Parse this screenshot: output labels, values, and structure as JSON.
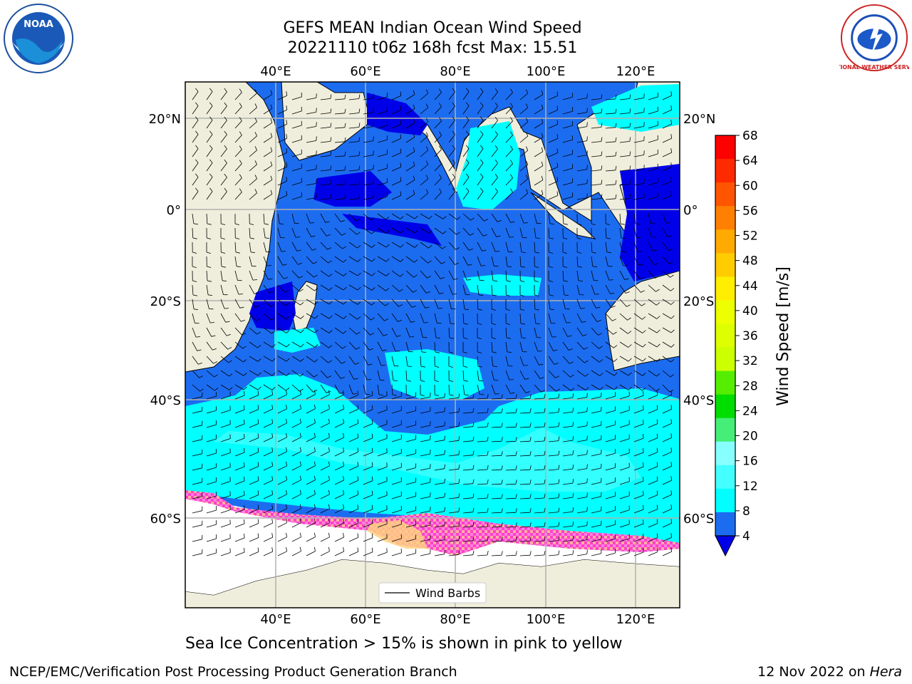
{
  "title": {
    "line1": "GEFS MEAN Indian Ocean Wind Speed",
    "line2": "20221110 t06z 168h fcst   Max: 15.51"
  },
  "map": {
    "lon_labels_top": [
      "40°E",
      "60°E",
      "80°E",
      "100°E",
      "120°E"
    ],
    "lon_labels_bottom": [
      "40°E",
      "60°E",
      "80°E",
      "100°E",
      "120°E"
    ],
    "lat_labels_left": [
      "20°N",
      "0°",
      "20°S",
      "40°S",
      "60°S"
    ],
    "lat_labels_right": [
      "20°N",
      "0°",
      "20°S",
      "40°S",
      "60°S"
    ],
    "legend_label": "Wind Barbs",
    "colors": {
      "land": "#efeedc",
      "ice_free_white": "#ffffff",
      "ws_4_8": "#1c6cf0",
      "ws_0_4": "#0000e8",
      "ws_8_12": "#00ffff",
      "ws_12_16": "#40ffff",
      "ice_pink": "#ff40c8",
      "ice_yellow": "#ffd080"
    }
  },
  "colorbar": {
    "label": "Wind Speed [m/s]",
    "ticks": [
      "68",
      "64",
      "60",
      "56",
      "52",
      "48",
      "44",
      "40",
      "36",
      "32",
      "28",
      "24",
      "20",
      "16",
      "12",
      "8",
      "4"
    ],
    "band_colors": [
      "#ff0000",
      "#ff2a00",
      "#ff5500",
      "#ff8000",
      "#ffaa00",
      "#ffcc00",
      "#ffee00",
      "#eeff00",
      "#ddff00",
      "#ccff00",
      "#55ee00",
      "#00dd00",
      "#44ee77",
      "#88ffff",
      "#44ffff",
      "#00ffff",
      "#1c6cf0"
    ],
    "extend_color": "#0000e8"
  },
  "caption": "Sea Ice Concentration > 15% is shown in pink to yellow",
  "footer": {
    "left": "NCEP/EMC/Verification Post Processing Product Generation Branch",
    "right_prefix": "12 Nov 2022 on ",
    "right_host": "Hera"
  },
  "logos": {
    "noaa_text": "NOAA",
    "nws_text": "NATIONAL WEATHER SERVICE"
  }
}
